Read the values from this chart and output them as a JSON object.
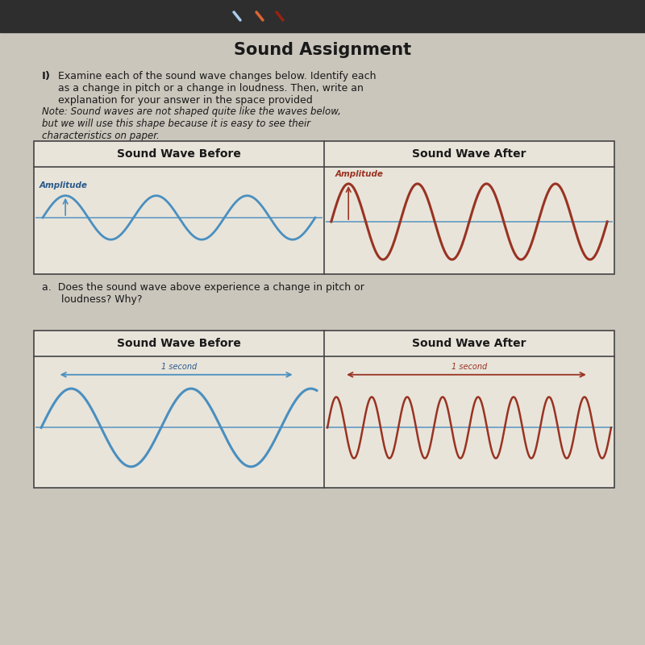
{
  "title": "Sound Assignment",
  "toolbar_bg": "#2e2e2e",
  "page_bg": "#cac6bc",
  "table_bg": "#e8e4da",
  "instruction_number": "I)",
  "instruction_text": "Examine each of the sound wave changes below. Identify each\nas a change in pitch or a change in loudness. Then, write an\nexplanation for your answer in the space provided",
  "note_text": "Note: Sound waves are not shaped quite like the waves below,\nbut we will use this shape because it is easy to see their\ncharacteristics on paper.",
  "table1_header_left": "Sound Wave Before",
  "table1_header_right": "Sound Wave After",
  "table2_header_left": "Sound Wave Before",
  "table2_header_right": "Sound Wave After",
  "amplitude_label": "Amplitude",
  "one_second_label": "1 second",
  "question_a": "a.  Does the sound wave above experience a change in pitch or\n      loudness? Why?",
  "blue_color": "#4a8fbf",
  "red_color": "#993322",
  "dark_blue": "#2a5a8a",
  "box_border": "#444444",
  "text_color": "#1a1a1a",
  "title_color": "#1a1a1a"
}
